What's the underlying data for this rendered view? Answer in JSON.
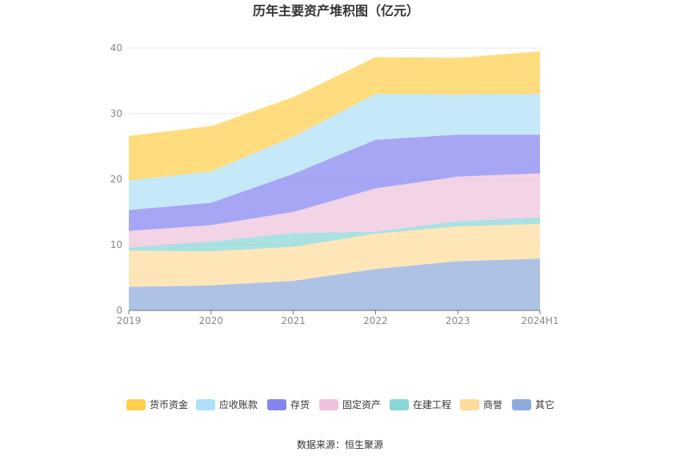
{
  "chart_data": {
    "type": "area",
    "stacked": true,
    "title": "历年主要资产堆积图（亿元）",
    "categories": [
      "2019",
      "2020",
      "2021",
      "2022",
      "2023",
      "2024H1"
    ],
    "ylim": [
      0,
      40
    ],
    "yticks": [
      0,
      10,
      20,
      30,
      40
    ],
    "grid": true,
    "legend_position": "bottom",
    "series": [
      {
        "name": "其它",
        "color": "#8faadc",
        "values": [
          3.6,
          3.8,
          4.5,
          6.3,
          7.5,
          7.9
        ]
      },
      {
        "name": "商誉",
        "color": "#ffdc9c",
        "values": [
          5.5,
          5.2,
          5.2,
          5.4,
          5.3,
          5.3
        ]
      },
      {
        "name": "在建工程",
        "color": "#89d6d6",
        "values": [
          0.5,
          1.5,
          2.1,
          0.3,
          0.8,
          1.0
        ]
      },
      {
        "name": "固定资产",
        "color": "#eec2dc",
        "values": [
          2.5,
          2.5,
          3.2,
          6.6,
          6.8,
          6.7
        ]
      },
      {
        "name": "存货",
        "color": "#8484f0",
        "values": [
          3.2,
          3.4,
          5.8,
          7.4,
          6.4,
          5.9
        ]
      },
      {
        "name": "应收账款",
        "color": "#aee1f7",
        "values": [
          4.5,
          4.8,
          5.7,
          7.0,
          6.1,
          6.2
        ]
      },
      {
        "name": "货币资金",
        "color": "#ffcf4c",
        "values": [
          6.8,
          6.9,
          6.0,
          5.6,
          5.6,
          6.5
        ]
      }
    ],
    "legend_order": [
      "货币资金",
      "应收账款",
      "存货",
      "固定资产",
      "在建工程",
      "商誉",
      "其它"
    ]
  },
  "source": "数据来源：恒生聚源"
}
